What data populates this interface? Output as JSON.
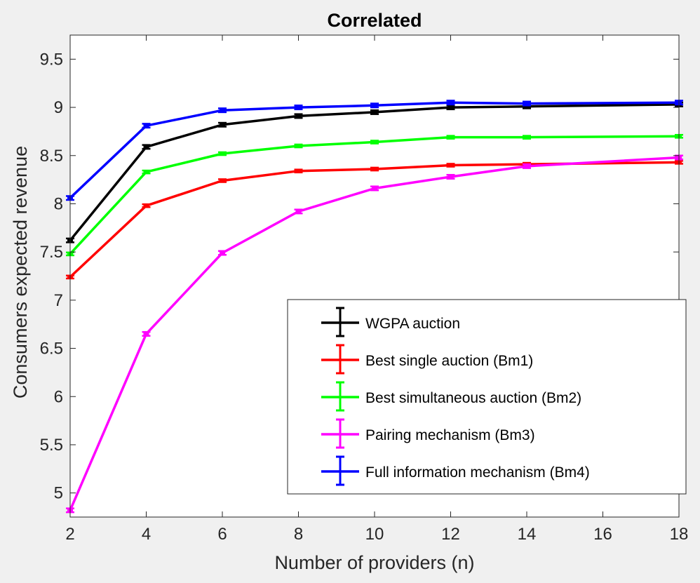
{
  "chart_data": {
    "type": "line",
    "title": "Correlated",
    "xlabel": "Number of providers (n)",
    "ylabel": "Consumers expected revenue",
    "xlim": [
      2,
      18
    ],
    "ylim": [
      4.75,
      9.75
    ],
    "xticks": [
      2,
      4,
      6,
      8,
      10,
      12,
      14,
      16,
      18
    ],
    "yticks": [
      5,
      5.5,
      6,
      6.5,
      7,
      7.5,
      8,
      8.5,
      9,
      9.5
    ],
    "grid": false,
    "legend_location": "bottom-right",
    "x": [
      2,
      4,
      6,
      8,
      10,
      12,
      14,
      18
    ],
    "series": [
      {
        "name": "WGPA auction",
        "color": "#000000",
        "values": [
          7.62,
          8.59,
          8.82,
          8.91,
          8.95,
          9.0,
          9.01,
          9.03
        ],
        "err": 0.02
      },
      {
        "name": "Best single auction (Bm1)",
        "color": "#ff0000",
        "values": [
          7.24,
          7.98,
          8.24,
          8.34,
          8.36,
          8.4,
          8.41,
          8.43
        ],
        "err": 0.015
      },
      {
        "name": "Best simultaneous auction (Bm2)",
        "color": "#00ff00",
        "values": [
          7.48,
          8.33,
          8.52,
          8.6,
          8.64,
          8.69,
          8.69,
          8.7
        ],
        "err": 0.015
      },
      {
        "name": "Pairing mechanism (Bm3)",
        "color": "#ff00ff",
        "values": [
          4.82,
          6.65,
          7.49,
          7.92,
          8.16,
          8.28,
          8.39,
          8.48
        ],
        "err": 0.02
      },
      {
        "name": "Full information mechanism (Bm4)",
        "color": "#0000ff",
        "values": [
          8.06,
          8.81,
          8.97,
          9.0,
          9.02,
          9.05,
          9.04,
          9.05
        ],
        "err": 0.02
      }
    ]
  }
}
